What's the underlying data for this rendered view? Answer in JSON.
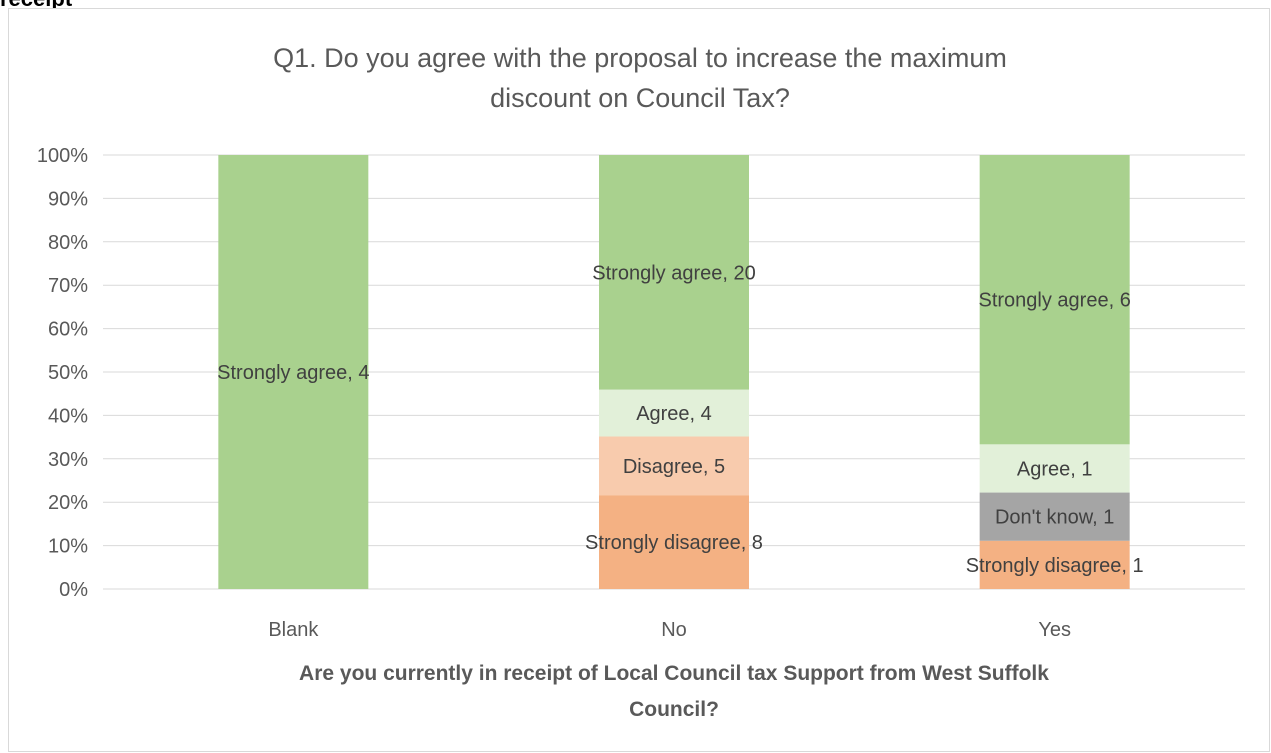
{
  "page": {
    "top_fragment": "receipt"
  },
  "chart_data": {
    "type": "bar",
    "stacked": "percent",
    "title": "Q1. Do you agree with the proposal to increase the maximum discount on Council Tax?",
    "title_lines": [
      "Q1. Do you agree with the proposal to increase the maximum",
      "discount on Council Tax?"
    ],
    "xlabel": "Are you currently in receipt of Local Council tax Support from West Suffolk Council?",
    "xlabel_lines": [
      "Are you currently in receipt of Local Council tax Support from West Suffolk",
      "Council?"
    ],
    "ylabel": "",
    "ylim": [
      0,
      100
    ],
    "yticks": [
      "0%",
      "10%",
      "20%",
      "30%",
      "40%",
      "50%",
      "60%",
      "70%",
      "80%",
      "90%",
      "100%"
    ],
    "categories": [
      "Blank",
      "No",
      "Yes"
    ],
    "series": [
      {
        "name": "Strongly disagree",
        "color": "#f4b183",
        "values": [
          0,
          8,
          1
        ]
      },
      {
        "name": "Don't know",
        "color": "#a5a5a5",
        "values": [
          0,
          0,
          1
        ]
      },
      {
        "name": "Disagree",
        "color": "#f8cbad",
        "values": [
          0,
          5,
          0
        ]
      },
      {
        "name": "Agree",
        "color": "#e2f0d9",
        "values": [
          0,
          4,
          1
        ]
      },
      {
        "name": "Strongly agree",
        "color": "#a9d18e",
        "values": [
          4,
          20,
          6
        ]
      }
    ],
    "grid": true,
    "legend": "none",
    "data_labels": true
  }
}
